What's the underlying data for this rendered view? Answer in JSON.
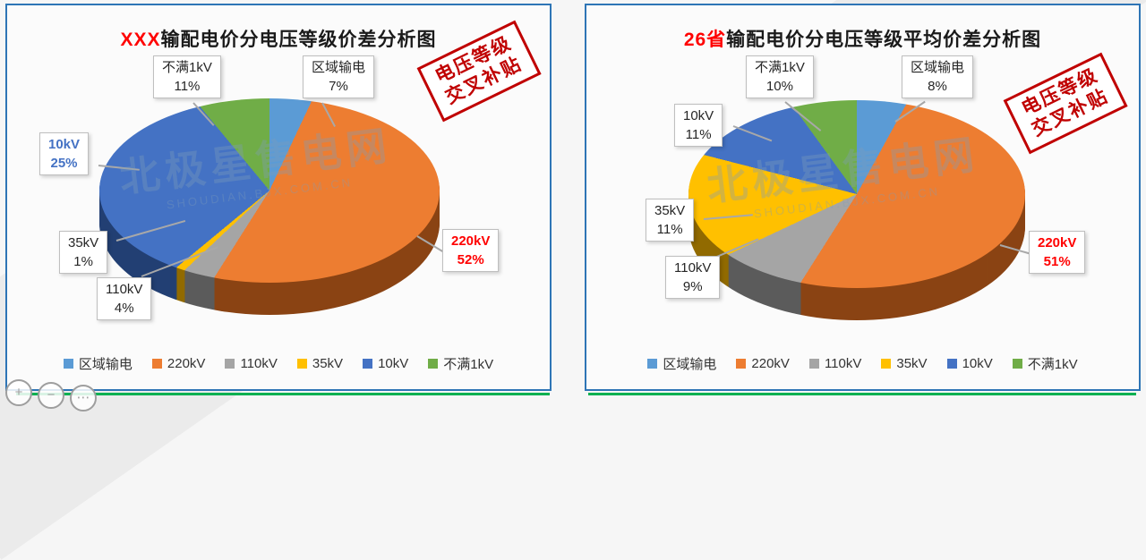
{
  "panels": [
    {
      "title_prefix": "XXX",
      "title_rest": "输配电价分电压等级价差分析图",
      "stamp": {
        "line1": "电压等级",
        "line2": "交叉补贴"
      },
      "watermark": {
        "main": "北极星售电网",
        "sub": "SHOUDIAN.BJX.COM.CN"
      }
    },
    {
      "title_prefix": "26省",
      "title_rest": "输配电价分电压等级平均价差分析图",
      "stamp": {
        "line1": "电压等级",
        "line2": "交叉补贴"
      },
      "watermark": {
        "main": "北极星售电网",
        "sub": "SHOUDIAN.BJX.COM.CN"
      }
    }
  ],
  "chart_data": [
    {
      "type": "pie",
      "style": "3d-pie",
      "title": "XXX输配电价分电压等级价差分析图",
      "labels": [
        "区域输电",
        "220kV",
        "110kV",
        "35kV",
        "10kV",
        "不满1kV"
      ],
      "values": [
        7,
        52,
        4,
        1,
        25,
        11
      ],
      "unit": "%",
      "colors": [
        "#5B9BD5",
        "#ED7D31",
        "#A5A5A5",
        "#FFC000",
        "#4472C4",
        "#70AD47"
      ],
      "start_angle": 0,
      "direction": "clockwise",
      "legend_position": "bottom"
    },
    {
      "type": "pie",
      "style": "3d-pie",
      "title": "26省输配电价分电压等级平均价差分析图",
      "labels": [
        "区域输电",
        "220kV",
        "110kV",
        "35kV",
        "10kV",
        "不满1kV"
      ],
      "values": [
        8,
        51,
        9,
        11,
        11,
        10
      ],
      "unit": "%",
      "colors": [
        "#5B9BD5",
        "#ED7D31",
        "#A5A5A5",
        "#FFC000",
        "#4472C4",
        "#70AD47"
      ],
      "start_angle": 0,
      "direction": "clockwise",
      "legend_position": "bottom"
    }
  ],
  "colors": {
    "panel_border": "#2E75B6",
    "title_accent": "#FF0000",
    "stamp_red": "#C00000",
    "label_220kv": "#FF0000",
    "label_10kv": "#4472C4",
    "bottom_line_green": "#00B050"
  },
  "icons": {
    "corner_controls": [
      {
        "name": "zoom-in-icon",
        "glyph": "+"
      },
      {
        "name": "zoom-out-icon",
        "glyph": "−"
      },
      {
        "name": "more-icon",
        "glyph": "⋯"
      }
    ]
  }
}
